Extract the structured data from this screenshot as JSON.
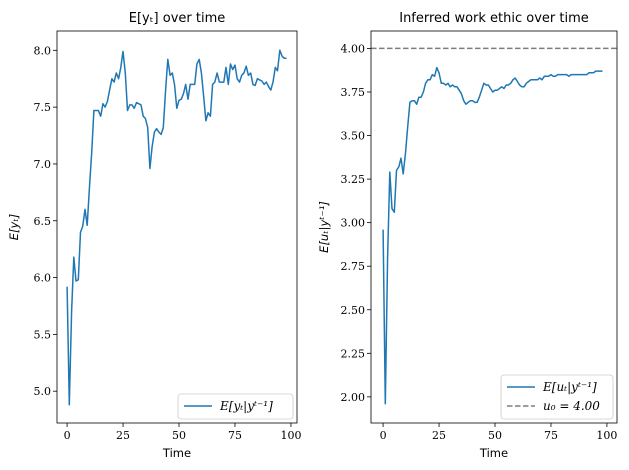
{
  "chart_data": [
    {
      "type": "line",
      "title": "E[yₜ] over time",
      "xlabel": "Time",
      "ylabel": "E[yₜ]",
      "xlim": [
        -4.5,
        102.7
      ],
      "ylim": [
        4.72,
        8.17
      ],
      "xticks": [
        0,
        25,
        50,
        75,
        100
      ],
      "yticks": [
        "5.0",
        "5.5",
        "6.0",
        "6.5",
        "7.0",
        "7.5",
        "8.0"
      ],
      "legend_position": "lower right",
      "grid": false,
      "series": [
        {
          "name": "E[yₜ|yᵗ⁻¹]",
          "color": "#1f77b4",
          "style": "solid",
          "y": [
            5.92,
            4.88,
            5.7,
            6.18,
            5.97,
            5.98,
            6.4,
            6.45,
            6.6,
            6.46,
            6.8,
            7.1,
            7.47,
            7.47,
            7.47,
            7.42,
            7.53,
            7.5,
            7.55,
            7.65,
            7.75,
            7.72,
            7.8,
            7.75,
            7.85,
            7.99,
            7.8,
            7.47,
            7.52,
            7.52,
            7.49,
            7.54,
            7.53,
            7.52,
            7.42,
            7.4,
            7.32,
            6.96,
            7.15,
            7.28,
            7.31,
            7.28,
            7.26,
            7.32,
            7.65,
            7.92,
            7.78,
            7.8,
            7.7,
            7.49,
            7.56,
            7.57,
            7.62,
            7.7,
            7.57,
            7.7,
            7.7,
            7.7,
            7.88,
            7.92,
            7.8,
            7.6,
            7.38,
            7.45,
            7.42,
            7.7,
            7.72,
            7.8,
            7.72,
            7.72,
            7.72,
            7.85,
            7.7,
            7.88,
            7.83,
            7.87,
            7.75,
            7.72,
            7.78,
            7.8,
            7.86,
            7.78,
            7.8,
            7.7,
            7.69,
            7.75,
            7.74,
            7.73,
            7.7,
            7.72,
            7.68,
            7.65,
            7.72,
            7.85,
            7.82,
            8.0,
            7.95,
            7.93,
            7.93
          ]
        }
      ]
    },
    {
      "type": "line",
      "title": "Inferred work ethic over time",
      "xlabel": "Time",
      "ylabel": "E[uₜ|yᵗ⁻¹]",
      "xlim": [
        -5.4,
        104.5
      ],
      "ylim": [
        1.85,
        4.1
      ],
      "xticks": [
        0,
        25,
        50,
        75,
        100
      ],
      "yticks": [
        "2.00",
        "2.25",
        "2.50",
        "2.75",
        "3.00",
        "3.25",
        "3.50",
        "3.75",
        "4.00"
      ],
      "legend_position": "lower right",
      "grid": false,
      "series": [
        {
          "name": "E[uₜ|yᵗ⁻¹]",
          "color": "#1f77b4",
          "style": "solid",
          "y": [
            2.96,
            1.96,
            2.8,
            3.29,
            3.08,
            3.06,
            3.3,
            3.32,
            3.37,
            3.28,
            3.4,
            3.55,
            3.69,
            3.7,
            3.7,
            3.68,
            3.72,
            3.72,
            3.75,
            3.8,
            3.82,
            3.82,
            3.85,
            3.84,
            3.89,
            3.86,
            3.8,
            3.8,
            3.79,
            3.8,
            3.78,
            3.79,
            3.78,
            3.78,
            3.76,
            3.74,
            3.7,
            3.68,
            3.69,
            3.7,
            3.7,
            3.69,
            3.69,
            3.72,
            3.76,
            3.8,
            3.79,
            3.79,
            3.77,
            3.75,
            3.76,
            3.76,
            3.77,
            3.78,
            3.77,
            3.79,
            3.79,
            3.8,
            3.82,
            3.83,
            3.81,
            3.79,
            3.78,
            3.78,
            3.8,
            3.81,
            3.82,
            3.82,
            3.82,
            3.82,
            3.83,
            3.82,
            3.84,
            3.84,
            3.84,
            3.85,
            3.84,
            3.84,
            3.85,
            3.85,
            3.85,
            3.85,
            3.85,
            3.84,
            3.85,
            3.85,
            3.85,
            3.85,
            3.85,
            3.85,
            3.85,
            3.85,
            3.86,
            3.86,
            3.86,
            3.87,
            3.87,
            3.87,
            3.87
          ]
        },
        {
          "name": "u₀ = 4.00",
          "color": "#7f7f7f",
          "style": "dashed",
          "hline": 4.0
        }
      ]
    }
  ]
}
